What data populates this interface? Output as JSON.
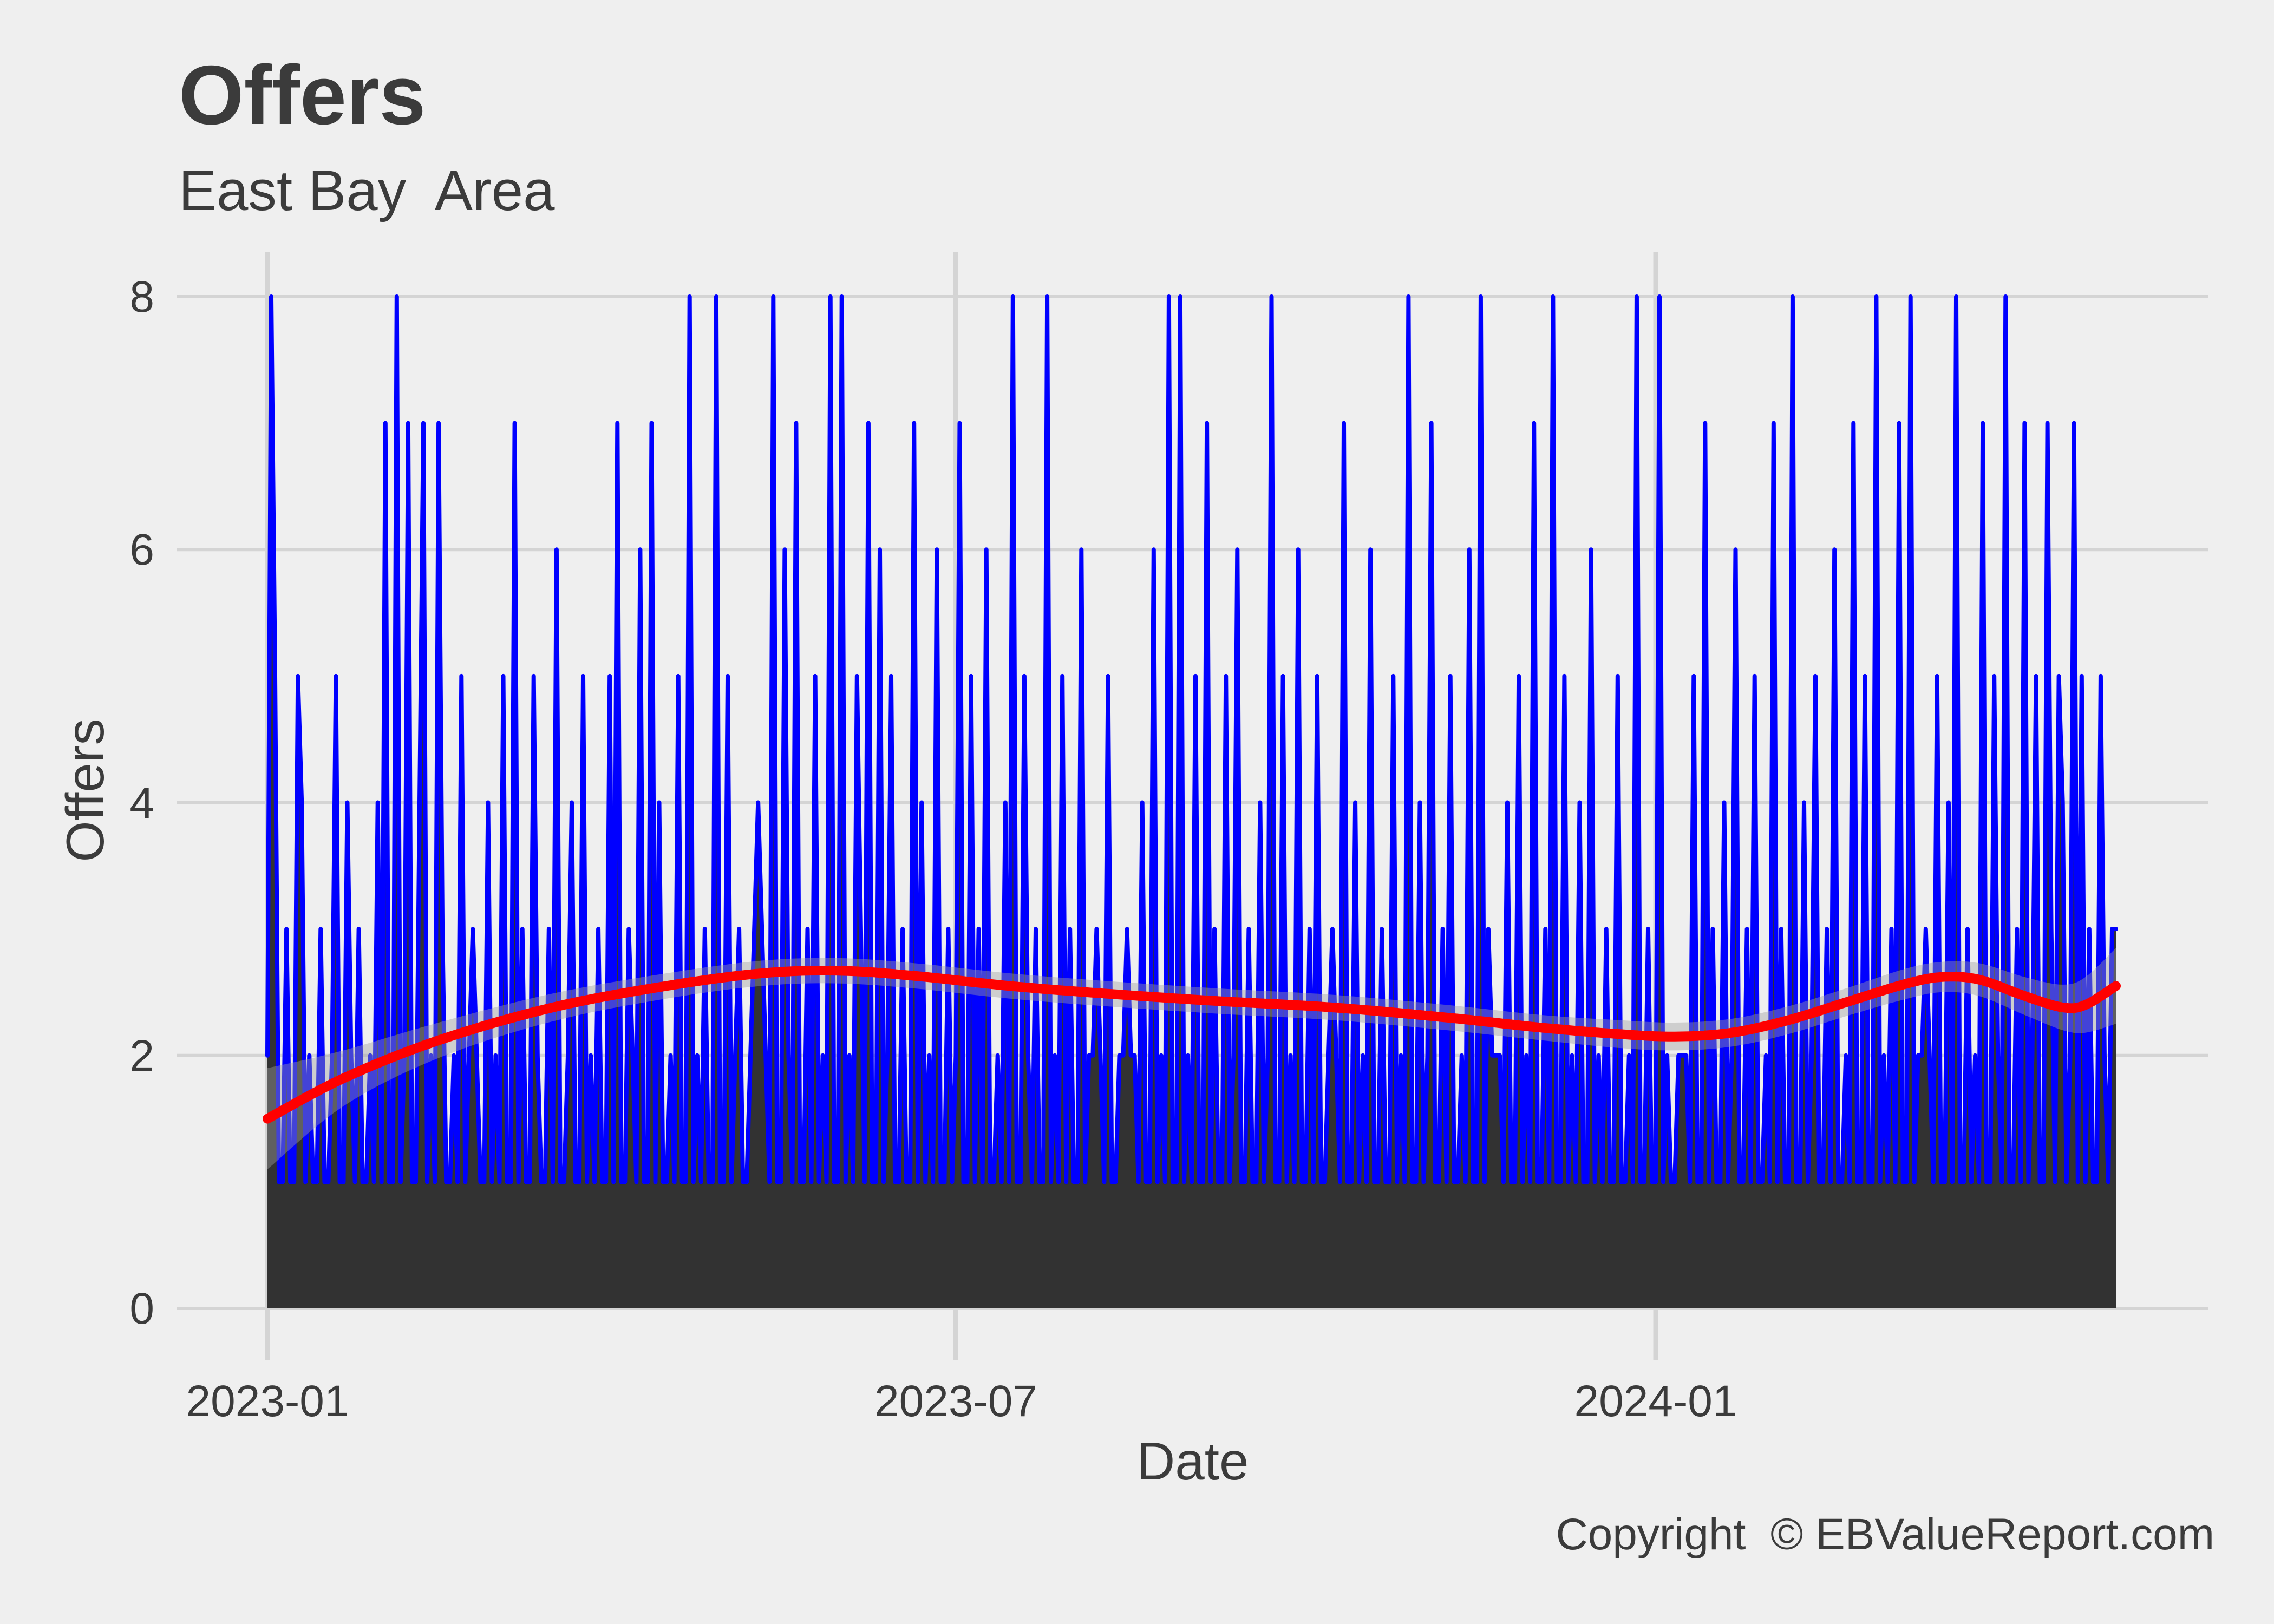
{
  "title": "Offers",
  "subtitle": "East Bay  Area",
  "footer": {
    "copyright": "Copyright  © EBValueReport.com"
  },
  "chart_data": {
    "type": "line",
    "title": "Offers",
    "subtitle": "East Bay  Area",
    "xlabel": "Date",
    "ylabel": "Offers",
    "x_start_date": "2023-01-01",
    "x_end_date": "2024-05-01",
    "x_tick_labels": [
      "2023-01",
      "2023-07",
      "2024-01"
    ],
    "x_tick_days": [
      0,
      181,
      365
    ],
    "y_ticks": [
      0,
      2,
      4,
      6,
      8
    ],
    "ylim": [
      0,
      8
    ],
    "grid": true,
    "legend": false,
    "colors": {
      "background": "#EFEFEF",
      "gridline": "#D4D4D4",
      "area_fill": "#323232",
      "line": "#0000FF",
      "smooth_line": "#FF0000",
      "smooth_band": "rgba(160,160,160,0.42)",
      "text": "#3B3B3B"
    },
    "daily": {
      "unit": "offers per day, day 0 = 2023-01-01",
      "values": [
        2,
        8,
        5,
        1,
        1,
        3,
        1,
        1,
        5,
        4,
        1,
        2,
        1,
        1,
        3,
        1,
        1,
        2,
        5,
        1,
        1,
        4,
        2,
        1,
        3,
        1,
        1,
        2,
        1,
        4,
        1,
        7,
        1,
        1,
        8,
        1,
        2,
        7,
        1,
        1,
        4,
        7,
        1,
        2,
        1,
        7,
        3,
        1,
        1,
        2,
        1,
        5,
        1,
        2,
        3,
        2,
        1,
        1,
        4,
        1,
        2,
        1,
        5,
        1,
        1,
        7,
        1,
        3,
        1,
        1,
        5,
        2,
        1,
        1,
        3,
        1,
        6,
        1,
        1,
        2,
        4,
        1,
        1,
        5,
        1,
        2,
        1,
        3,
        1,
        1,
        5,
        1,
        7,
        1,
        1,
        3,
        2,
        1,
        6,
        1,
        1,
        7,
        1,
        4,
        1,
        1,
        2,
        1,
        5,
        1,
        1,
        8,
        1,
        2,
        1,
        3,
        1,
        1,
        8,
        1,
        1,
        5,
        1,
        2,
        3,
        1,
        1,
        2,
        3,
        4,
        3,
        2,
        1,
        8,
        1,
        1,
        6,
        2,
        1,
        7,
        1,
        1,
        3,
        1,
        5,
        1,
        2,
        1,
        8,
        1,
        1,
        8,
        1,
        2,
        1,
        5,
        3,
        1,
        7,
        1,
        1,
        6,
        1,
        2,
        5,
        1,
        1,
        3,
        1,
        1,
        7,
        1,
        4,
        1,
        2,
        1,
        6,
        1,
        1,
        3,
        1,
        2,
        7,
        1,
        1,
        5,
        1,
        3,
        1,
        6,
        1,
        1,
        2,
        1,
        4,
        1,
        8,
        1,
        1,
        5,
        2,
        1,
        3,
        1,
        1,
        8,
        1,
        2,
        1,
        5,
        1,
        3,
        1,
        1,
        6,
        1,
        2,
        2,
        3,
        2,
        1,
        5,
        1,
        1,
        2,
        2,
        3,
        2,
        2,
        1,
        4,
        1,
        1,
        6,
        1,
        2,
        1,
        8,
        1,
        1,
        8,
        1,
        2,
        1,
        5,
        1,
        1,
        7,
        1,
        3,
        1,
        1,
        5,
        1,
        2,
        6,
        1,
        1,
        3,
        1,
        1,
        4,
        1,
        2,
        8,
        1,
        1,
        5,
        1,
        2,
        1,
        6,
        1,
        1,
        3,
        1,
        5,
        1,
        1,
        2,
        3,
        2,
        1,
        7,
        1,
        1,
        4,
        1,
        2,
        1,
        6,
        1,
        1,
        3,
        1,
        1,
        5,
        1,
        2,
        1,
        8,
        1,
        1,
        4,
        1,
        2,
        7,
        1,
        1,
        3,
        1,
        5,
        1,
        1,
        2,
        1,
        6,
        1,
        1,
        8,
        1,
        3,
        2,
        2,
        2,
        1,
        4,
        1,
        1,
        5,
        1,
        2,
        1,
        7,
        1,
        1,
        3,
        1,
        8,
        1,
        1,
        5,
        1,
        2,
        1,
        4,
        1,
        1,
        6,
        1,
        2,
        1,
        3,
        1,
        1,
        5,
        1,
        1,
        2,
        1,
        8,
        1,
        1,
        3,
        1,
        1,
        8,
        1,
        2,
        1,
        1,
        2,
        2,
        2,
        1,
        5,
        1,
        1,
        7,
        1,
        3,
        1,
        1,
        4,
        1,
        2,
        6,
        1,
        1,
        3,
        1,
        5,
        1,
        1,
        2,
        1,
        7,
        1,
        3,
        1,
        1,
        8,
        1,
        1,
        4,
        1,
        2,
        5,
        1,
        1,
        3,
        1,
        6,
        1,
        1,
        2,
        1,
        7,
        1,
        1,
        5,
        1,
        1,
        8,
        1,
        2,
        1,
        3,
        1,
        7,
        1,
        1,
        8,
        1,
        2,
        2,
        3,
        2,
        1,
        5,
        1,
        1,
        4,
        1,
        8,
        1,
        1,
        3,
        1,
        2,
        1,
        7,
        1,
        1,
        5,
        2,
        1,
        8,
        1,
        1,
        3,
        1,
        7,
        1,
        2,
        5,
        1,
        1,
        7,
        3,
        1,
        5,
        4,
        1,
        2,
        7,
        1,
        5,
        1,
        3,
        1,
        1,
        5,
        2,
        1,
        3,
        3
      ]
    },
    "smooth": {
      "name": "loess trend",
      "days": [
        0,
        20,
        45,
        75,
        105,
        130,
        150,
        170,
        195,
        220,
        250,
        280,
        310,
        335,
        355,
        370,
        385,
        400,
        415,
        430,
        440,
        450,
        462,
        472,
        478,
        486
      ],
      "values": [
        1.5,
        1.82,
        2.12,
        2.38,
        2.55,
        2.65,
        2.67,
        2.63,
        2.55,
        2.49,
        2.43,
        2.38,
        2.3,
        2.22,
        2.17,
        2.15,
        2.18,
        2.28,
        2.42,
        2.56,
        2.62,
        2.6,
        2.47,
        2.38,
        2.4,
        2.55
      ],
      "band_halfwidth": [
        0.4,
        0.22,
        0.14,
        0.11,
        0.1,
        0.1,
        0.1,
        0.1,
        0.1,
        0.1,
        0.1,
        0.1,
        0.1,
        0.1,
        0.11,
        0.11,
        0.11,
        0.11,
        0.11,
        0.12,
        0.12,
        0.13,
        0.15,
        0.18,
        0.22,
        0.3
      ]
    }
  }
}
